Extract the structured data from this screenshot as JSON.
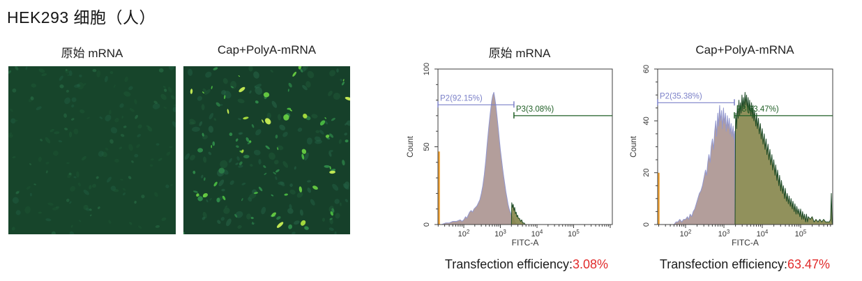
{
  "title": "HEK293 细胞（人）",
  "colors": {
    "accent_red": "#e12b2b",
    "frame": "#3c3c3c",
    "tick_text": "#333333",
    "negative_fill": "#ab9390",
    "negative_stroke": "#9297cf",
    "positive_fill": "#85854a",
    "positive_stroke": "#1d4a26",
    "offscale_orange": "#f2a12e",
    "gate_p2": "#7b80c8",
    "gate_p3": "#1e5e24"
  },
  "microscopy": {
    "panels": [
      {
        "label": "原始 mRNA",
        "bg": "#17452b",
        "seed": 7,
        "layers": [
          {
            "count": 120,
            "rmin": 2,
            "rmax": 5.5,
            "elong": 1.2,
            "opacity": 0.45,
            "colors": [
              "#1d5434",
              "#1f5a38",
              "#226044"
            ]
          },
          {
            "count": 35,
            "rmin": 1.5,
            "rmax": 3.5,
            "elong": 0.8,
            "opacity": 0.5,
            "colors": [
              "#2a7048",
              "#2e7a4e"
            ]
          }
        ]
      },
      {
        "label": "Cap+PolyA-mRNA",
        "bg": "#16402a",
        "seed": 42,
        "layers": [
          {
            "count": 130,
            "rmin": 2,
            "rmax": 6,
            "elong": 1.2,
            "opacity": 0.5,
            "colors": [
              "#1f5a38",
              "#226044",
              "#28684a"
            ]
          },
          {
            "count": 55,
            "rmin": 2,
            "rmax": 4.5,
            "elong": 1.5,
            "opacity": 0.7,
            "colors": [
              "#2f8a4c",
              "#37a354"
            ]
          },
          {
            "count": 32,
            "rmin": 1.5,
            "rmax": 4.5,
            "elong": 1.8,
            "opacity": 0.9,
            "colors": [
              "#4cc043",
              "#6ad343"
            ]
          },
          {
            "count": 12,
            "rmin": 2.5,
            "rmax": 6,
            "elong": 2.2,
            "opacity": 0.95,
            "colors": [
              "#aadf3e",
              "#c9ef55"
            ]
          }
        ]
      }
    ]
  },
  "chart_data": [
    {
      "type": "area",
      "title": "原始 mRNA",
      "xlabel": "FITC-A",
      "ylabel": "Count",
      "xscale": "log10",
      "xlog_range": [
        1.295,
        6.057
      ],
      "x_decade_labels": [
        2,
        3,
        4,
        5
      ],
      "ylim": [
        0,
        100
      ],
      "y_major_ticks": [
        0,
        50,
        100
      ],
      "y_minor_step": 10,
      "grid": false,
      "legend": "none",
      "offscale_bar": {
        "count": 47
      },
      "series": [
        {
          "name": "negative",
          "points": [
            [
              1.4,
              0
            ],
            [
              1.5,
              1
            ],
            [
              1.6,
              1
            ],
            [
              1.7,
              2
            ],
            [
              1.8,
              2
            ],
            [
              1.9,
              3
            ],
            [
              1.95,
              2
            ],
            [
              2.0,
              3
            ],
            [
              2.05,
              5
            ],
            [
              2.08,
              4
            ],
            [
              2.12,
              6
            ],
            [
              2.16,
              8
            ],
            [
              2.2,
              9
            ],
            [
              2.24,
              8
            ],
            [
              2.28,
              10
            ],
            [
              2.32,
              11
            ],
            [
              2.36,
              12
            ],
            [
              2.4,
              14
            ],
            [
              2.44,
              16
            ],
            [
              2.48,
              20
            ],
            [
              2.52,
              25
            ],
            [
              2.56,
              32
            ],
            [
              2.6,
              41
            ],
            [
              2.64,
              52
            ],
            [
              2.68,
              62
            ],
            [
              2.72,
              71
            ],
            [
              2.76,
              79
            ],
            [
              2.79,
              83
            ],
            [
              2.82,
              85
            ],
            [
              2.85,
              81
            ],
            [
              2.88,
              76
            ],
            [
              2.91,
              69
            ],
            [
              2.94,
              62
            ],
            [
              2.97,
              55
            ],
            [
              3.0,
              48
            ],
            [
              3.03,
              42
            ],
            [
              3.06,
              36
            ],
            [
              3.09,
              31
            ],
            [
              3.12,
              26
            ],
            [
              3.15,
              21
            ],
            [
              3.18,
              17
            ],
            [
              3.21,
              13
            ],
            [
              3.24,
              10
            ],
            [
              3.27,
              8
            ],
            [
              3.3,
              6
            ],
            [
              3.33,
              5
            ],
            [
              3.36,
              4
            ],
            [
              3.39,
              2
            ],
            [
              3.42,
              1
            ],
            [
              3.45,
              0
            ]
          ]
        },
        {
          "name": "positive",
          "points": [
            [
              3.3,
              0
            ],
            [
              3.31,
              14
            ],
            [
              3.33,
              11
            ],
            [
              3.35,
              13
            ],
            [
              3.37,
              9
            ],
            [
              3.39,
              11
            ],
            [
              3.41,
              7
            ],
            [
              3.43,
              8
            ],
            [
              3.45,
              5
            ],
            [
              3.47,
              6
            ],
            [
              3.49,
              4
            ],
            [
              3.52,
              4
            ],
            [
              3.55,
              2
            ],
            [
              3.58,
              3
            ],
            [
              3.61,
              1
            ],
            [
              3.65,
              1
            ],
            [
              3.68,
              0
            ]
          ]
        }
      ],
      "gates": [
        {
          "label": "P2(92.15%)",
          "gate": "P2",
          "count": 77,
          "from_log": 1.295,
          "to_log": 3.37,
          "end_ticks": "both"
        },
        {
          "label": "P3(3.08%)",
          "gate": "P3",
          "count": 70,
          "from_log": 3.37,
          "to_log": 6.057,
          "end_ticks": "left"
        }
      ],
      "efficiency": {
        "label": "Transfection efficiency:",
        "value": "3.08%"
      }
    },
    {
      "type": "area",
      "title": "Cap+PolyA-mRNA",
      "xlabel": "FITC-A",
      "ylabel": "Count",
      "xscale": "log10",
      "xlog_range": [
        1.273,
        5.836
      ],
      "x_decade_labels": [
        2,
        3,
        4,
        5
      ],
      "ylim": [
        0,
        60
      ],
      "y_major_ticks": [
        0,
        20,
        40,
        60
      ],
      "y_minor_step": 5,
      "grid": false,
      "legend": "none",
      "offscale_bar": {
        "count": 20
      },
      "series": [
        {
          "name": "negative",
          "points": [
            [
              1.7,
              0
            ],
            [
              1.75,
              1
            ],
            [
              1.8,
              1
            ],
            [
              1.85,
              2
            ],
            [
              1.9,
              1
            ],
            [
              1.95,
              2
            ],
            [
              2.0,
              2
            ],
            [
              2.05,
              3
            ],
            [
              2.08,
              2
            ],
            [
              2.12,
              4
            ],
            [
              2.16,
              3
            ],
            [
              2.2,
              5
            ],
            [
              2.24,
              6
            ],
            [
              2.28,
              8
            ],
            [
              2.32,
              10
            ],
            [
              2.36,
              12
            ],
            [
              2.4,
              13
            ],
            [
              2.44,
              15
            ],
            [
              2.48,
              18
            ],
            [
              2.52,
              21
            ],
            [
              2.55,
              19
            ],
            [
              2.58,
              24
            ],
            [
              2.61,
              27
            ],
            [
              2.64,
              24
            ],
            [
              2.67,
              30
            ],
            [
              2.7,
              33
            ],
            [
              2.73,
              29
            ],
            [
              2.76,
              36
            ],
            [
              2.79,
              40
            ],
            [
              2.81,
              34
            ],
            [
              2.84,
              43
            ],
            [
              2.86,
              38
            ],
            [
              2.89,
              46
            ],
            [
              2.91,
              40
            ],
            [
              2.94,
              44
            ],
            [
              2.96,
              37
            ],
            [
              2.99,
              45
            ],
            [
              3.01,
              39
            ],
            [
              3.04,
              43
            ],
            [
              3.06,
              36
            ],
            [
              3.09,
              42
            ],
            [
              3.11,
              37
            ],
            [
              3.14,
              41
            ],
            [
              3.16,
              35
            ],
            [
              3.19,
              39
            ],
            [
              3.21,
              34
            ],
            [
              3.24,
              38
            ],
            [
              3.26,
              33
            ],
            [
              3.28,
              36
            ],
            [
              3.29,
              0
            ]
          ]
        },
        {
          "name": "positive",
          "points": [
            [
              3.29,
              0
            ],
            [
              3.3,
              38
            ],
            [
              3.31,
              43
            ],
            [
              3.33,
              37
            ],
            [
              3.35,
              46
            ],
            [
              3.37,
              41
            ],
            [
              3.39,
              48
            ],
            [
              3.41,
              42
            ],
            [
              3.43,
              47
            ],
            [
              3.45,
              43
            ],
            [
              3.47,
              50
            ],
            [
              3.49,
              44
            ],
            [
              3.51,
              49
            ],
            [
              3.53,
              45
            ],
            [
              3.55,
              51
            ],
            [
              3.57,
              46
            ],
            [
              3.59,
              50
            ],
            [
              3.61,
              44
            ],
            [
              3.63,
              49
            ],
            [
              3.65,
              43
            ],
            [
              3.67,
              48
            ],
            [
              3.7,
              42
            ],
            [
              3.72,
              47
            ],
            [
              3.74,
              41
            ],
            [
              3.76,
              46
            ],
            [
              3.78,
              40
            ],
            [
              3.8,
              44
            ],
            [
              3.83,
              38
            ],
            [
              3.85,
              43
            ],
            [
              3.87,
              37
            ],
            [
              3.9,
              41
            ],
            [
              3.92,
              35
            ],
            [
              3.95,
              39
            ],
            [
              3.97,
              33
            ],
            [
              4.0,
              37
            ],
            [
              4.02,
              31
            ],
            [
              4.05,
              35
            ],
            [
              4.07,
              29
            ],
            [
              4.1,
              33
            ],
            [
              4.12,
              27
            ],
            [
              4.15,
              31
            ],
            [
              4.17,
              25
            ],
            [
              4.2,
              29
            ],
            [
              4.22,
              23
            ],
            [
              4.25,
              27
            ],
            [
              4.27,
              21
            ],
            [
              4.3,
              25
            ],
            [
              4.33,
              19
            ],
            [
              4.35,
              23
            ],
            [
              4.38,
              17
            ],
            [
              4.4,
              21
            ],
            [
              4.43,
              15
            ],
            [
              4.45,
              19
            ],
            [
              4.48,
              13
            ],
            [
              4.5,
              17
            ],
            [
              4.53,
              12
            ],
            [
              4.55,
              15
            ],
            [
              4.58,
              10
            ],
            [
              4.6,
              14
            ],
            [
              4.63,
              9
            ],
            [
              4.65,
              12
            ],
            [
              4.68,
              8
            ],
            [
              4.7,
              11
            ],
            [
              4.73,
              7
            ],
            [
              4.75,
              10
            ],
            [
              4.78,
              6
            ],
            [
              4.8,
              9
            ],
            [
              4.83,
              5
            ],
            [
              4.85,
              8
            ],
            [
              4.88,
              4
            ],
            [
              4.9,
              7
            ],
            [
              4.93,
              4
            ],
            [
              4.95,
              6
            ],
            [
              4.98,
              3
            ],
            [
              5.0,
              6
            ],
            [
              5.03,
              2
            ],
            [
              5.05,
              5
            ],
            [
              5.08,
              2
            ],
            [
              5.1,
              4
            ],
            [
              5.13,
              1
            ],
            [
              5.15,
              4
            ],
            [
              5.18,
              1
            ],
            [
              5.2,
              3
            ],
            [
              5.25,
              2
            ],
            [
              5.3,
              3
            ],
            [
              5.35,
              1
            ],
            [
              5.4,
              2
            ],
            [
              5.45,
              1
            ],
            [
              5.5,
              2
            ],
            [
              5.55,
              1
            ],
            [
              5.6,
              2
            ],
            [
              5.65,
              1
            ],
            [
              5.7,
              1
            ],
            [
              5.75,
              1
            ],
            [
              5.78,
              2
            ],
            [
              5.8,
              12
            ],
            [
              5.82,
              1
            ],
            [
              5.836,
              0
            ]
          ]
        }
      ],
      "gates": [
        {
          "label": "P2(35.38%)",
          "gate": "P2",
          "count": 47,
          "from_log": 1.273,
          "to_log": 3.273,
          "end_ticks": "both"
        },
        {
          "label": "P3(63.47%)",
          "gate": "P3",
          "count": 42,
          "from_log": 3.273,
          "to_log": 5.836,
          "end_ticks": "left"
        }
      ],
      "efficiency": {
        "label": "Transfection efficiency:",
        "value": "63.47%"
      }
    }
  ]
}
